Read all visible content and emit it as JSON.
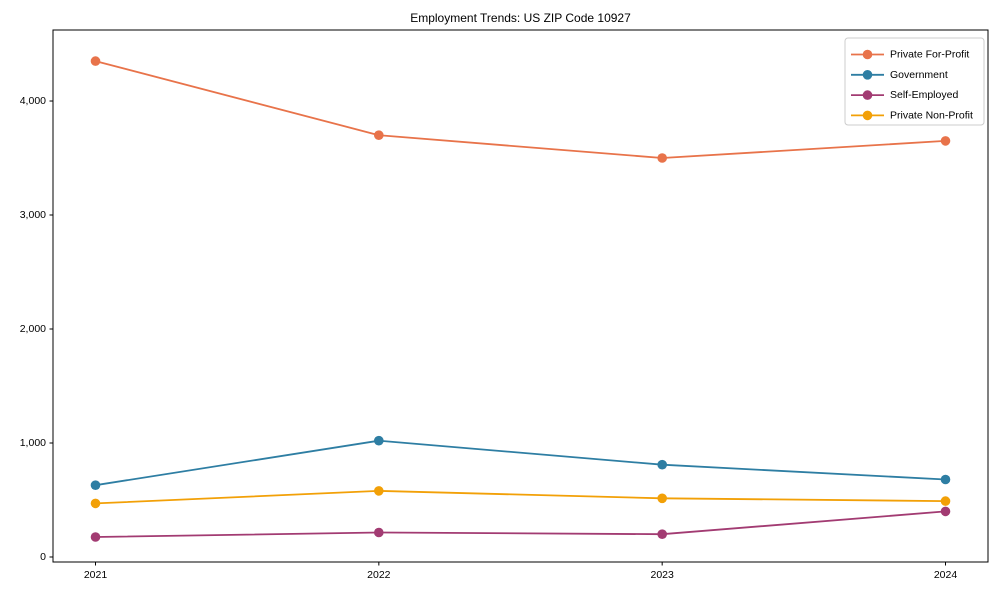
{
  "figure": {
    "background": "#ffffff",
    "axis_color": "#000000",
    "legend_border_color": "#cccccc",
    "legend_background": "#ffffff"
  },
  "chart_data": {
    "type": "line",
    "title": "Employment Trends: US ZIP Code 10927",
    "xlabel": "",
    "ylabel": "",
    "categories": [
      "2021",
      "2022",
      "2023",
      "2024"
    ],
    "series": [
      {
        "name": "Private For-Profit",
        "color": "#E8734A",
        "values": [
          4350,
          3700,
          3500,
          3650
        ]
      },
      {
        "name": "Government",
        "color": "#2E7EA3",
        "values": [
          630,
          1020,
          810,
          680
        ]
      },
      {
        "name": "Self-Employed",
        "color": "#A23B72",
        "values": [
          175,
          215,
          200,
          400
        ]
      },
      {
        "name": "Private Non-Profit",
        "color": "#F2A007",
        "values": [
          470,
          580,
          515,
          490
        ]
      }
    ],
    "ylim": [
      -44,
      4623
    ],
    "yticks": [
      0,
      1000,
      2000,
      3000,
      4000
    ],
    "grid": false,
    "legend_position": "upper right",
    "marker": "circle"
  }
}
